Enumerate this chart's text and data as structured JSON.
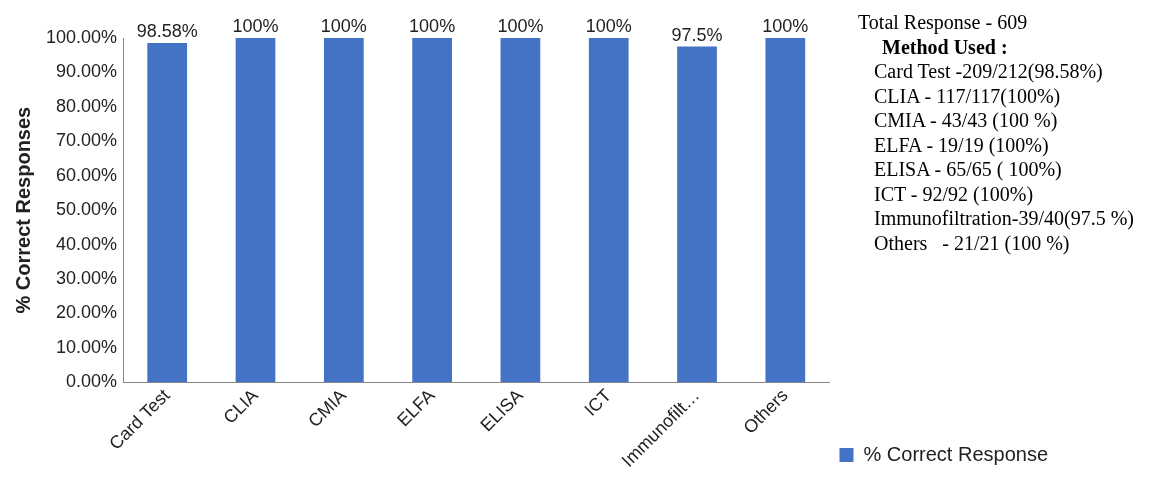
{
  "chart_data": {
    "type": "bar",
    "ylabel": "% Correct Responses",
    "categories": [
      "Card Test",
      "CLIA",
      "CMIA",
      "ELFA",
      "ELISA",
      "ICT",
      "Immunofilt…",
      "Others"
    ],
    "series": [
      {
        "name": "% Correct Response",
        "color": "#4472c4",
        "values": [
          98.58,
          100,
          100,
          100,
          100,
          100,
          97.5,
          100
        ],
        "value_labels": [
          "98.58%",
          "100%",
          "100%",
          "100%",
          "100%",
          "100%",
          "97.5%",
          "100%"
        ]
      }
    ],
    "ylim": [
      0,
      100
    ],
    "yticks": [
      {
        "value": 0,
        "label": "0.00%"
      },
      {
        "value": 10,
        "label": "10.00%"
      },
      {
        "value": 20,
        "label": "20.00%"
      },
      {
        "value": 30,
        "label": "30.00%"
      },
      {
        "value": 40,
        "label": "40.00%"
      },
      {
        "value": 50,
        "label": "50.00%"
      },
      {
        "value": 60,
        "label": "60.00%"
      },
      {
        "value": 70,
        "label": "70.00%"
      },
      {
        "value": 80,
        "label": "80.00%"
      },
      {
        "value": 90,
        "label": "90.00%"
      },
      {
        "value": 100,
        "label": "100.00%"
      }
    ],
    "grid": false,
    "legend": "bottom right",
    "annotations": [
      "Total Response - 609",
      "Method Used :",
      "Card Test -209/212(98.58%)",
      "CLIA - 117/117(100%)",
      "CMIA - 43/43 (100 %)",
      "ELFA - 19/19 (100%)",
      "ELISA - 65/65 ( 100%)",
      "ICT - 92/92 (100%)",
      "Immunofiltration-39/40(97.5 %)",
      "Others   - 21/21 (100 %)"
    ]
  }
}
